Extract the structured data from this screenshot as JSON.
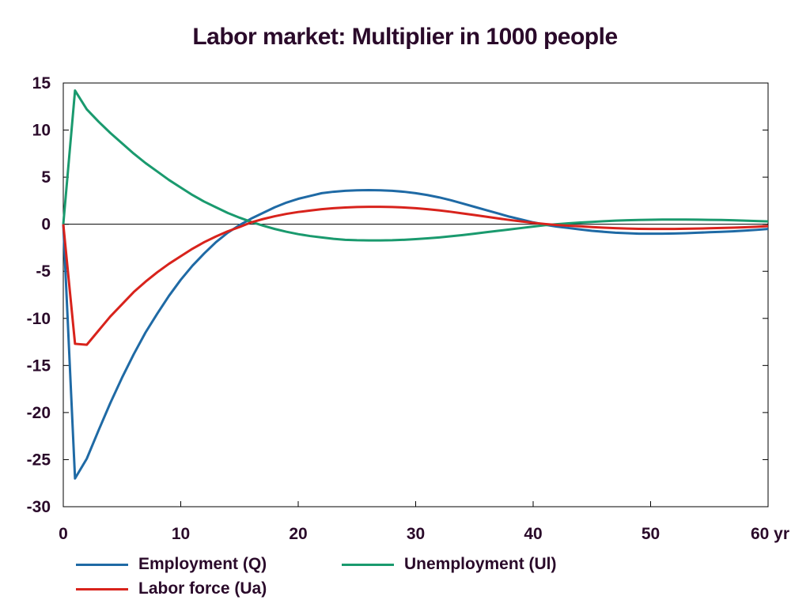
{
  "chart_data": {
    "type": "line",
    "title": "Labor market: Multiplier in 1000 people",
    "xlabel": "",
    "ylabel": "",
    "x_unit_label": "yr",
    "xlim": [
      0,
      60
    ],
    "ylim": [
      -30,
      15
    ],
    "x_ticks": [
      0,
      10,
      20,
      30,
      40,
      50,
      60
    ],
    "x_tick_labels": [
      "0",
      "10",
      "20",
      "30",
      "40",
      "50",
      "60 yr"
    ],
    "y_ticks": [
      15,
      10,
      5,
      0,
      -5,
      -10,
      -15,
      -20,
      -25,
      -30
    ],
    "y_tick_labels": [
      "15",
      "10",
      "5",
      "0",
      "-5",
      "-10",
      "-15",
      "-20",
      "-25",
      "-30"
    ],
    "grid": false,
    "zero_line": true,
    "legend_position": "bottom",
    "x": [
      0,
      1,
      2,
      3,
      4,
      5,
      6,
      7,
      8,
      9,
      10,
      11,
      12,
      13,
      14,
      15,
      16,
      17,
      18,
      19,
      20,
      21,
      22,
      23,
      24,
      25,
      26,
      27,
      28,
      29,
      30,
      31,
      32,
      33,
      34,
      35,
      36,
      37,
      38,
      39,
      40,
      41,
      42,
      43,
      44,
      45,
      46,
      47,
      48,
      49,
      50,
      51,
      52,
      53,
      54,
      55,
      56,
      57,
      58,
      59,
      60
    ],
    "series": [
      {
        "name": "Employment (Q)",
        "color": "#1f6aa5",
        "values": [
          0,
          -27,
          -24.9,
          -21.9,
          -19.0,
          -16.3,
          -13.8,
          -11.5,
          -9.5,
          -7.6,
          -5.9,
          -4.4,
          -3.1,
          -1.9,
          -0.9,
          -0.1,
          0.6,
          1.2,
          1.8,
          2.3,
          2.7,
          3.0,
          3.3,
          3.45,
          3.55,
          3.6,
          3.62,
          3.6,
          3.55,
          3.45,
          3.3,
          3.1,
          2.85,
          2.55,
          2.2,
          1.85,
          1.5,
          1.15,
          0.8,
          0.5,
          0.2,
          -0.05,
          -0.25,
          -0.4,
          -0.55,
          -0.7,
          -0.8,
          -0.9,
          -0.95,
          -1.0,
          -1.0,
          -1.0,
          -0.98,
          -0.95,
          -0.9,
          -0.85,
          -0.8,
          -0.75,
          -0.68,
          -0.6,
          -0.5
        ]
      },
      {
        "name": "Unemployment (Ul)",
        "color": "#1a9a6e",
        "values": [
          0,
          14.2,
          12.2,
          10.9,
          9.7,
          8.6,
          7.5,
          6.5,
          5.6,
          4.7,
          3.9,
          3.1,
          2.4,
          1.8,
          1.2,
          0.7,
          0.25,
          -0.15,
          -0.5,
          -0.8,
          -1.05,
          -1.25,
          -1.4,
          -1.55,
          -1.65,
          -1.7,
          -1.72,
          -1.72,
          -1.7,
          -1.65,
          -1.58,
          -1.5,
          -1.4,
          -1.28,
          -1.15,
          -1.0,
          -0.85,
          -0.7,
          -0.55,
          -0.4,
          -0.25,
          -0.1,
          0.0,
          0.1,
          0.18,
          0.25,
          0.32,
          0.38,
          0.42,
          0.46,
          0.48,
          0.5,
          0.5,
          0.5,
          0.49,
          0.47,
          0.45,
          0.42,
          0.38,
          0.34,
          0.3
        ]
      },
      {
        "name": "Labor force (Ua)",
        "color": "#d8231c",
        "values": [
          0,
          -12.7,
          -12.8,
          -11.3,
          -9.8,
          -8.5,
          -7.2,
          -6.1,
          -5.1,
          -4.2,
          -3.4,
          -2.6,
          -1.9,
          -1.3,
          -0.75,
          -0.3,
          0.2,
          0.55,
          0.85,
          1.1,
          1.3,
          1.45,
          1.6,
          1.7,
          1.78,
          1.83,
          1.85,
          1.85,
          1.83,
          1.78,
          1.7,
          1.6,
          1.47,
          1.32,
          1.15,
          0.98,
          0.8,
          0.62,
          0.45,
          0.3,
          0.15,
          0.03,
          -0.08,
          -0.15,
          -0.22,
          -0.3,
          -0.36,
          -0.42,
          -0.46,
          -0.49,
          -0.5,
          -0.5,
          -0.5,
          -0.48,
          -0.46,
          -0.43,
          -0.4,
          -0.36,
          -0.32,
          -0.27,
          -0.2
        ]
      }
    ]
  },
  "legend": {
    "employment": "Employment (Q)",
    "unemployment": "Unemployment (Ul)",
    "labor_force": "Labor force (Ua)"
  },
  "colors": {
    "employment": "#1f6aa5",
    "unemployment": "#1a9a6e",
    "labor_force": "#d8231c",
    "text": "#2a0a2a"
  }
}
